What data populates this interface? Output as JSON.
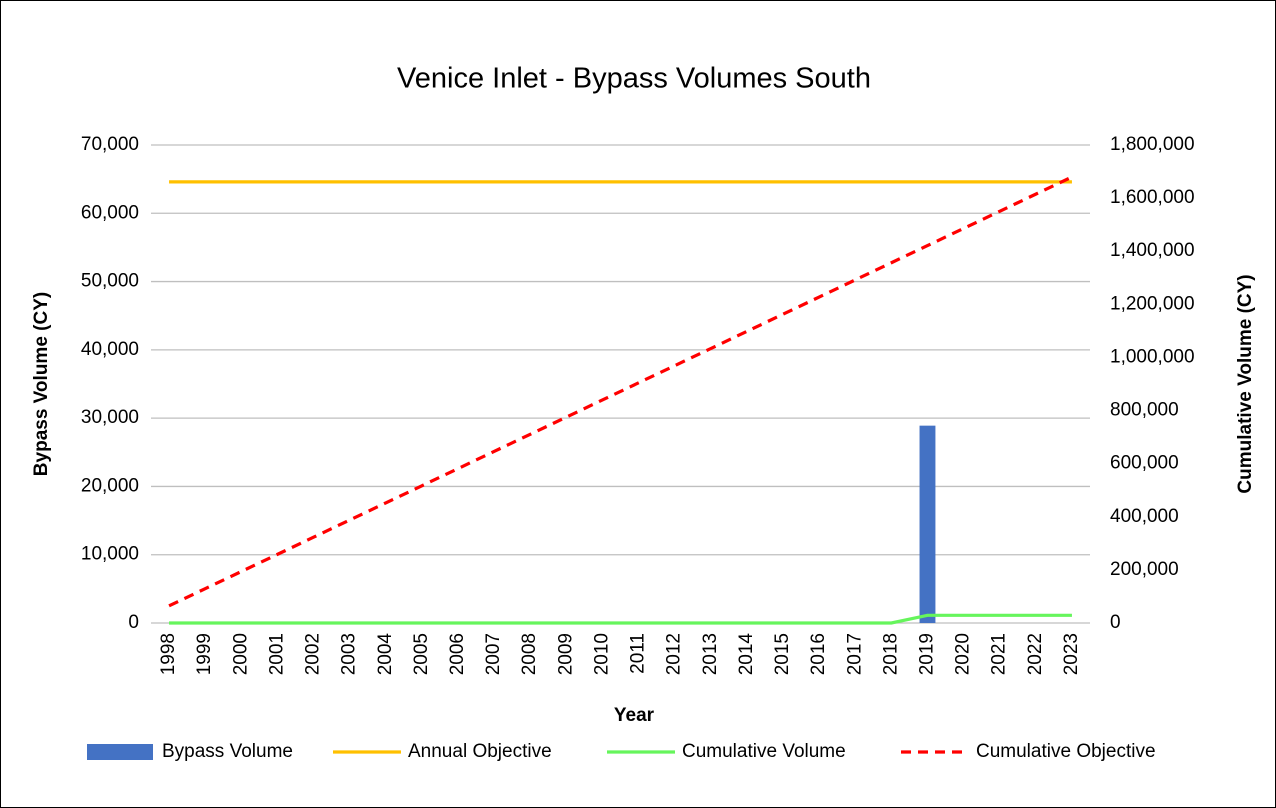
{
  "chart_data": {
    "type": "combo",
    "title": "Venice Inlet - Bypass Volumes South",
    "x_label": "Year",
    "y_label": "Bypass Volume (CY)",
    "y2_label": "Cumulative Volume (CY)",
    "categories": [
      "1998",
      "1999",
      "2000",
      "2001",
      "2002",
      "2003",
      "2004",
      "2005",
      "2006",
      "2007",
      "2008",
      "2009",
      "2010",
      "2011",
      "2012",
      "2013",
      "2014",
      "2015",
      "2016",
      "2017",
      "2018",
      "2019",
      "2020",
      "2021",
      "2022",
      "2023"
    ],
    "series": [
      {
        "name": "Bypass Volume",
        "type": "bar",
        "color": "#4472c4",
        "axis": "y",
        "values": [
          0,
          0,
          0,
          0,
          0,
          0,
          0,
          0,
          0,
          0,
          0,
          0,
          0,
          0,
          0,
          0,
          0,
          0,
          0,
          0,
          0,
          28900,
          0,
          0,
          0,
          0
        ]
      },
      {
        "name": "Annual Objective",
        "type": "line",
        "color": "#ffc000",
        "axis": "y",
        "values": [
          64600,
          64600,
          64600,
          64600,
          64600,
          64600,
          64600,
          64600,
          64600,
          64600,
          64600,
          64600,
          64600,
          64600,
          64600,
          64600,
          64600,
          64600,
          64600,
          64600,
          64600,
          64600,
          64600,
          64600,
          64600,
          64600
        ]
      },
      {
        "name": "Cumulative Volume",
        "type": "line",
        "color": "#66f55c",
        "axis": "y2",
        "values": [
          0,
          0,
          0,
          0,
          0,
          0,
          0,
          0,
          0,
          0,
          0,
          0,
          0,
          0,
          0,
          0,
          0,
          0,
          0,
          0,
          0,
          28900,
          28900,
          28900,
          28900,
          28900
        ]
      },
      {
        "name": "Cumulative Objective",
        "type": "line",
        "color": "#ff0000",
        "axis": "y2",
        "dashed": true,
        "values": [
          64600,
          129200,
          193800,
          258400,
          323000,
          387600,
          452200,
          516800,
          581400,
          646000,
          710600,
          775200,
          839800,
          904400,
          969000,
          1033600,
          1098200,
          1162800,
          1227400,
          1292000,
          1356600,
          1421200,
          1485800,
          1550400,
          1615000,
          1679600
        ]
      }
    ],
    "ylim": [
      0,
      70000
    ],
    "yticks": [
      0,
      {
        "value": 10000,
        "label": "10,000"
      },
      {
        "value": 20000,
        "label": "20,000"
      },
      {
        "value": 30000,
        "label": "30,000"
      },
      {
        "value": 40000,
        "label": "40,000"
      },
      {
        "value": 50000,
        "label": "50,000"
      },
      {
        "value": 60000,
        "label": "60,000"
      },
      {
        "value": 70000,
        "label": "70,000"
      }
    ],
    "y2lim": [
      0,
      1800000
    ],
    "y2ticks": [
      0,
      {
        "value": 200000,
        "label": "200,000"
      },
      {
        "value": 400000,
        "label": "400,000"
      },
      {
        "value": 600000,
        "label": "600,000"
      },
      {
        "value": 800000,
        "label": "800,000"
      },
      {
        "value": 1000000,
        "label": "1,000,000"
      },
      {
        "value": 1200000,
        "label": "1,200,000"
      },
      {
        "value": 1400000,
        "label": "1,400,000"
      },
      {
        "value": 1600000,
        "label": "1,600,000"
      },
      {
        "value": 1800000,
        "label": "1,800,000"
      }
    ],
    "grid": true,
    "legend": "bottom"
  }
}
